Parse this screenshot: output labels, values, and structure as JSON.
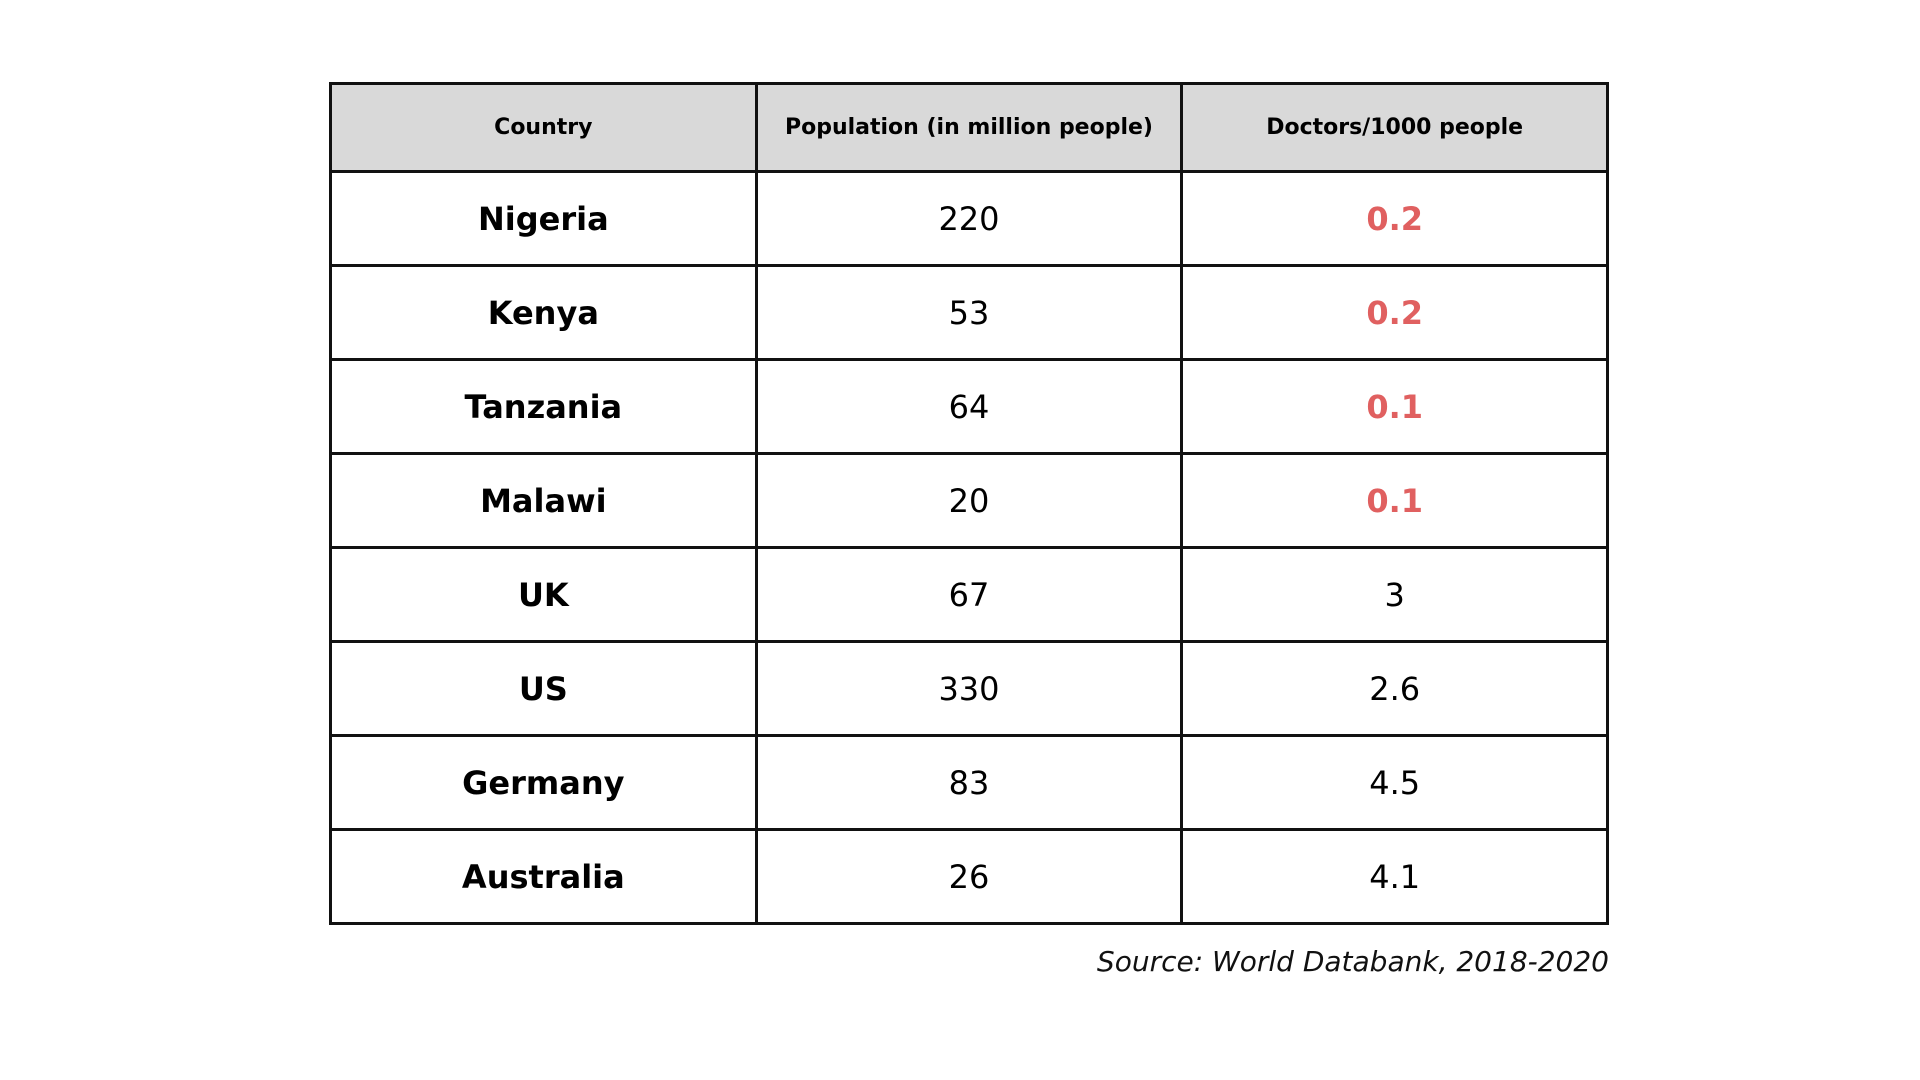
{
  "chart_data": {
    "type": "table",
    "columns": [
      "Country",
      "Population (in million people)",
      "Doctors/1000 people"
    ],
    "rows": [
      {
        "country": "Nigeria",
        "population": "220",
        "doctors": "0.2",
        "highlight": true
      },
      {
        "country": "Kenya",
        "population": "53",
        "doctors": "0.2",
        "highlight": true
      },
      {
        "country": "Tanzania",
        "population": "64",
        "doctors": "0.1",
        "highlight": true
      },
      {
        "country": "Malawi",
        "population": "20",
        "doctors": "0.1",
        "highlight": true
      },
      {
        "country": "UK",
        "population": "67",
        "doctors": "3",
        "highlight": false
      },
      {
        "country": "US",
        "population": "330",
        "doctors": "2.6",
        "highlight": false
      },
      {
        "country": "Germany",
        "population": "83",
        "doctors": "4.5",
        "highlight": false
      },
      {
        "country": "Australia",
        "population": "26",
        "doctors": "4.1",
        "highlight": false
      }
    ],
    "source": "Source: World Databank, 2018-2020",
    "colors": {
      "header_bg": "#d9d9d9",
      "highlight_text": "#e06060",
      "border": "#111111"
    }
  }
}
